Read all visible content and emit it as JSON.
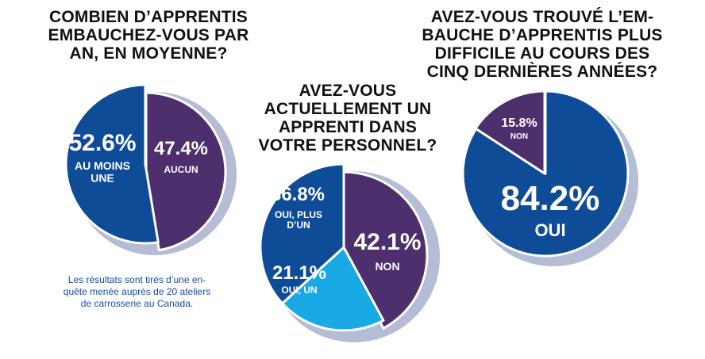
{
  "chart_data": [
    {
      "type": "pie",
      "title": "COMBIEN D’APPRENTIS\nEMBAUCHEZ-VOUS PAR\nAN, EN MOYENNE?",
      "slices": [
        {
          "value": 47.4,
          "pct_label": "47.4%",
          "label": "AUCUN",
          "color": "#4e2f6e"
        },
        {
          "value": 52.6,
          "pct_label": "52.6%",
          "label": "AU MOINS\nUNE",
          "color": "#0e4c97"
        }
      ]
    },
    {
      "type": "pie",
      "title": "AVEZ-VOUS\nACTUELLEMENT UN\nAPPRENTI DANS\nVOTRE PERSONNEL?",
      "slices": [
        {
          "value": 42.1,
          "pct_label": "42.1%",
          "label": "NON",
          "color": "#4e2f6e"
        },
        {
          "value": 21.1,
          "pct_label": "21.1%",
          "label": "OUI, UN",
          "color": "#19a9e5"
        },
        {
          "value": 36.8,
          "pct_label": "36.8%",
          "label": "OUI, PLUS\nD’UN",
          "color": "#0e4c97"
        }
      ]
    },
    {
      "type": "pie",
      "title": "AVEZ-VOUS TROUVÉ L’EM-\nBAUCHE D’APPRENTIS PLUS\nDIFFICILE AU COURS DES\nCINQ DERNIÈRES ANNÉES?",
      "slices": [
        {
          "value": 84.2,
          "pct_label": "84.2%",
          "label": "OUI",
          "color": "#0e4c97"
        },
        {
          "value": 15.8,
          "pct_label": "15.8%",
          "label": "NON",
          "color": "#4e2f6e"
        }
      ]
    }
  ],
  "note": "Les résultats sont tirés d’une en-\nquête menée auprès de 20 ateliers\nde carrosserie au Canada.",
  "colors": {
    "shadow": "#b4bcd6",
    "separator": "#ffffff"
  }
}
